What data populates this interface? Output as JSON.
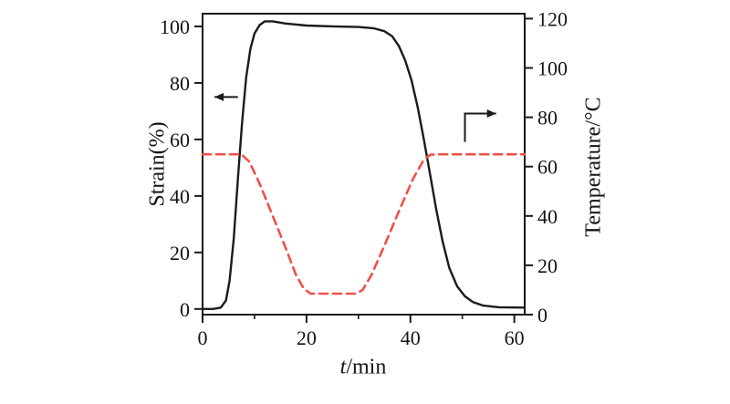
{
  "figure": {
    "background": "#ffffff"
  },
  "chart_data": {
    "type": "line",
    "title": "",
    "xlabel": "t/min",
    "xlabel_parts": {
      "italic": "t",
      "rest": "/min"
    },
    "ylabel_left": "Strain(%)",
    "ylabel_right": "Temperature/°C",
    "xlim": [
      0,
      62
    ],
    "xticks": [
      0,
      20,
      40,
      60
    ],
    "xminorticks": [
      10,
      30,
      50
    ],
    "ylim_left": [
      -2,
      104.5
    ],
    "yticks_left": [
      0,
      20,
      40,
      60,
      80,
      100
    ],
    "ylim_right": [
      0,
      122
    ],
    "yticks_right": [
      0,
      20,
      40,
      60,
      80,
      100,
      120
    ],
    "grid": false,
    "legend": "none",
    "frame_color": "#1a1a1a",
    "tick_label_color": "#141414",
    "series": [
      {
        "name": "Strain",
        "axis": "left",
        "color": "#1b1b1b",
        "line_style": "solid",
        "stroke_width": 2.4,
        "x": [
          0,
          2,
          3.5,
          4.5,
          5.2,
          6,
          6.8,
          7.6,
          8.4,
          9.2,
          10,
          11,
          12,
          13.5,
          16,
          20,
          25,
          30,
          33,
          35,
          36.5,
          37.8,
          39,
          40.2,
          41.4,
          42.6,
          43.8,
          45,
          46.2,
          47.5,
          49,
          50.5,
          52,
          54,
          57,
          62
        ],
        "y": [
          0,
          0,
          0.5,
          3,
          10,
          25,
          46,
          66,
          82,
          92,
          97.5,
          100.5,
          101.8,
          101.8,
          101,
          100.3,
          100,
          99.8,
          99.3,
          98.3,
          96.5,
          93,
          88,
          81,
          71.5,
          60,
          47.5,
          35,
          24,
          14.5,
          8,
          4.5,
          2.5,
          1.2,
          0.6,
          0.5
        ]
      },
      {
        "name": "Temperature",
        "axis": "right",
        "color": "#f0504a",
        "line_style": "dashed",
        "stroke_width": 2.6,
        "x": [
          0,
          7.5,
          9,
          11,
          13.5,
          16,
          18,
          19.5,
          20.8,
          29.5,
          30.8,
          32.5,
          35,
          38,
          40.5,
          42.5,
          43.8,
          45,
          62
        ],
        "y": [
          65,
          65,
          62,
          53,
          40,
          27,
          16,
          10.5,
          8.5,
          8.5,
          10,
          16,
          28,
          43,
          55,
          62.5,
          64.8,
          65,
          65
        ]
      }
    ],
    "annotations": [
      {
        "name": "left-axis-arrow",
        "axis": "left",
        "color": "#1b1b1b",
        "x": [
          6.8,
          2.3
        ],
        "y": [
          75,
          75
        ]
      },
      {
        "name": "right-axis-arrow",
        "axis": "right",
        "color": "#1b1b1b",
        "x": [
          50.5,
          50.5,
          56.5
        ],
        "y": [
          70,
          81.5,
          81.5
        ]
      }
    ]
  }
}
